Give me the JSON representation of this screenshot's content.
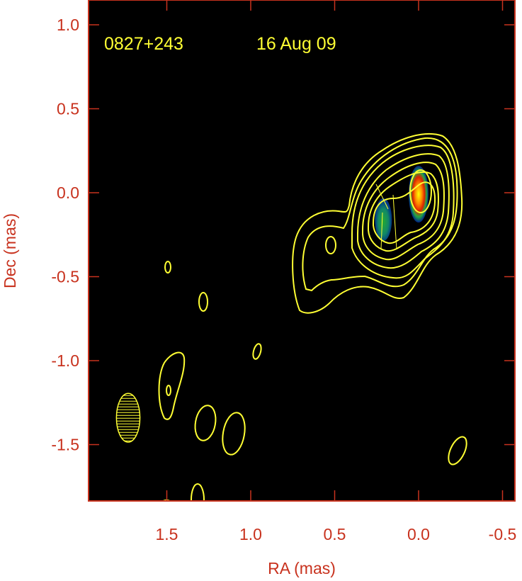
{
  "chart_data": {
    "type": "contour",
    "xlabel": "RA (mas)",
    "ylabel": "Dec (mas)",
    "xlim": [
      1.97,
      -0.57
    ],
    "ylim": [
      -1.84,
      1.15
    ],
    "x_ticks": [
      "1.5",
      "1.0",
      "0.5",
      "0.0",
      "-0.5"
    ],
    "x_tick_values": [
      1.5,
      1.0,
      0.5,
      0.0,
      -0.5
    ],
    "y_ticks": [
      "1.0",
      "0.5",
      "0.0",
      "-0.5",
      "-1.0",
      "-1.5"
    ],
    "y_tick_values": [
      1.0,
      0.5,
      0.0,
      -0.5,
      -1.0,
      -1.5
    ],
    "annotations": {
      "source": "0827+243",
      "date": "16 Aug 09"
    },
    "background_color": "#000000",
    "axis_color": "#c8321e",
    "contour_color": "#ffff33",
    "components": [
      {
        "ra": 0.0,
        "dec": 0.0,
        "peak": "high"
      },
      {
        "ra": 0.21,
        "dec": -0.16,
        "peak": "medium"
      }
    ],
    "beam": {
      "ra": 1.73,
      "dec": -1.34,
      "major_mas": 0.29,
      "minor_mas": 0.14,
      "pa_deg": 0
    }
  }
}
